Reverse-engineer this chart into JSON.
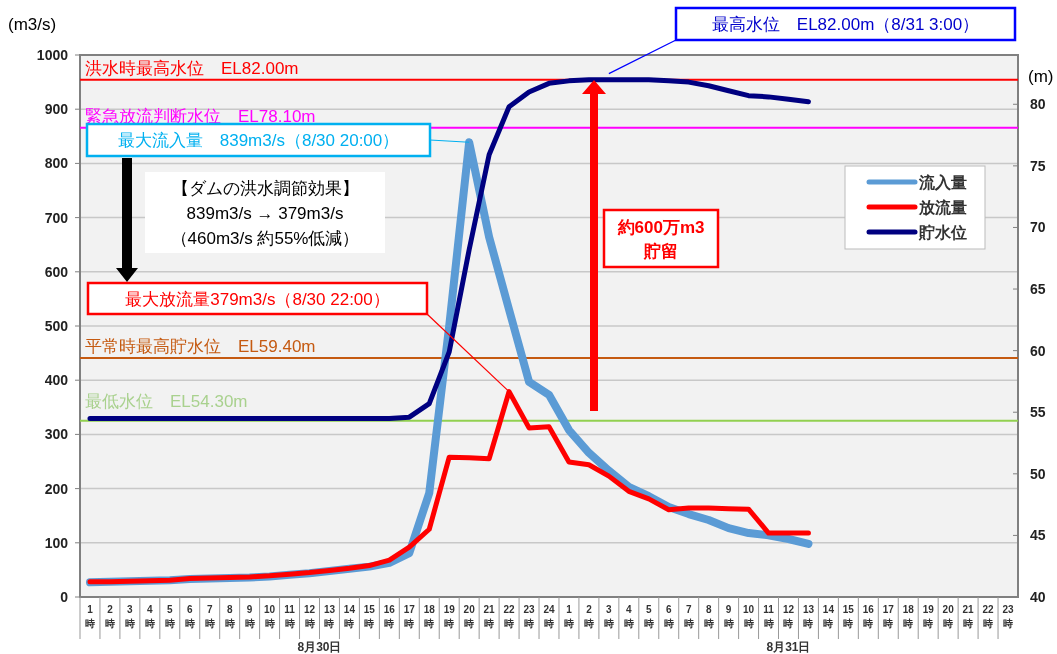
{
  "chart_data": {
    "type": "line",
    "ylabel": "(m3/s)",
    "y2label": "(m)",
    "categories": [
      "1時",
      "2時",
      "3時",
      "4時",
      "5時",
      "6時",
      "7時",
      "8時",
      "9時",
      "10時",
      "11時",
      "12時",
      "13時",
      "14時",
      "15時",
      "16時",
      "17時",
      "18時",
      "19時",
      "20時",
      "21時",
      "22時",
      "23時",
      "24時",
      "1時",
      "2時",
      "3時",
      "4時",
      "5時",
      "6時",
      "7時",
      "8時",
      "9時",
      "10時",
      "11時",
      "12時",
      "13時",
      "14時",
      "15時",
      "16時",
      "17時",
      "18時",
      "19時",
      "20時",
      "21時",
      "22時",
      "23時"
    ],
    "series": [
      {
        "name": "流入量",
        "color": "#5b9bd5",
        "values": [
          27,
          28,
          29,
          30,
          31,
          33,
          34,
          35,
          36,
          38,
          41,
          44,
          48,
          52,
          56,
          63,
          81,
          192,
          500,
          839,
          664,
          530,
          397,
          373,
          308,
          266,
          233,
          203,
          186,
          166,
          153,
          142,
          127,
          118,
          114,
          107,
          98,
          null,
          null,
          null,
          null,
          null,
          null,
          null,
          null,
          null,
          null
        ]
      },
      {
        "name": "放流量",
        "color": "#ff0000",
        "values": [
          28,
          28,
          29,
          30,
          31,
          34,
          35,
          36,
          37,
          39,
          42,
          45,
          49,
          53,
          58,
          68,
          92,
          125,
          258,
          257,
          255,
          379,
          312,
          314,
          249,
          244,
          223,
          195,
          181,
          161,
          164,
          164,
          163,
          162,
          118,
          118,
          118,
          null,
          null,
          null,
          null,
          null,
          null,
          null,
          null,
          null,
          null
        ]
      },
      {
        "name": "貯水位",
        "color": "#000080",
        "axis": "y2",
        "values": [
          54.5,
          54.5,
          54.5,
          54.5,
          54.5,
          54.5,
          54.5,
          54.5,
          54.5,
          54.5,
          54.5,
          54.5,
          54.5,
          54.5,
          54.5,
          54.5,
          54.6,
          55.7,
          59.9,
          68.2,
          75.9,
          79.8,
          81.0,
          81.7,
          81.9,
          82.0,
          82.0,
          82.0,
          82.0,
          81.9,
          81.8,
          81.5,
          81.1,
          80.7,
          80.6,
          80.4,
          80.2,
          null,
          null,
          null,
          null,
          null,
          null,
          null,
          null,
          null,
          null
        ]
      }
    ],
    "ylim": [
      0,
      1000
    ],
    "yticks": [
      0,
      100,
      200,
      300,
      400,
      500,
      600,
      700,
      800,
      900,
      1000
    ],
    "y2lim": [
      40,
      84
    ],
    "y2ticks": [
      40,
      45,
      50,
      55,
      60,
      65,
      70,
      75,
      80
    ],
    "ref_lines": [
      {
        "axis": "y2",
        "value": 82.0,
        "label": "洪水時最高水位　EL82.00m",
        "color": "#ff0000"
      },
      {
        "axis": "y2",
        "value": 78.1,
        "label": "緊急放流判断水位　EL78.10m",
        "color": "#ff00ff"
      },
      {
        "axis": "y2",
        "value": 59.4,
        "label": "平常時最高貯水位　EL59.40m",
        "color": "#c55a11"
      },
      {
        "axis": "y2",
        "value": 54.3,
        "label": "最低水位　EL54.30m",
        "color": "#92d050"
      }
    ],
    "annotations": [
      "最大流入量　839m3/s（8/30 20:00）",
      "最大放流量379m3/s（8/30 22:00）",
      "最高水位　EL82.00m（8/31 3:00）",
      "【ダムの洪水調節効果】\n839m3/s → 379m3/s\n（460m3/s 約55%低減）",
      "約600万m3\n貯留",
      "8月30日",
      "8月31日"
    ],
    "grid": "y",
    "legend": "right",
    "line_style": "solid",
    "marker": "none"
  }
}
